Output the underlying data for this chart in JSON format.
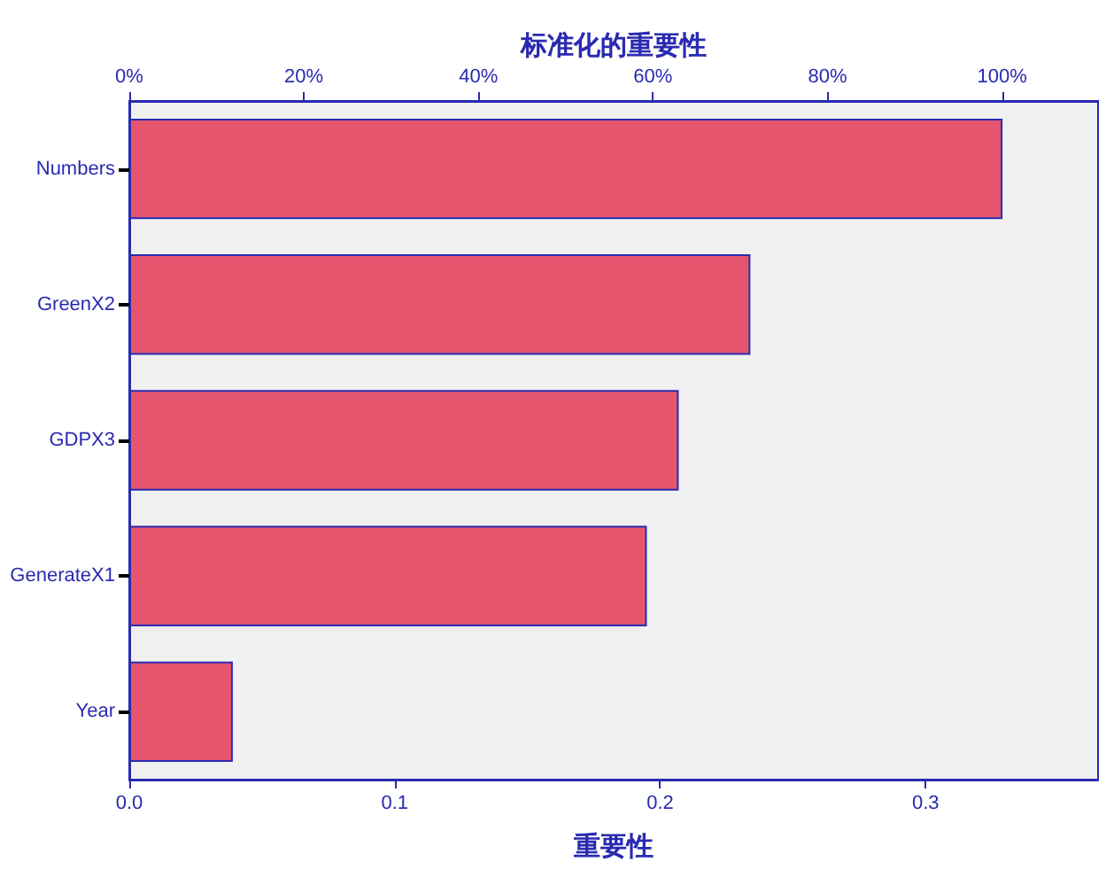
{
  "chart_data": {
    "type": "bar",
    "orientation": "horizontal",
    "xlabel": "重要性",
    "x2label": "标准化的重要性",
    "categories": [
      "Numbers",
      "GreenX2",
      "GDPX3",
      "GenerateX1",
      "Year"
    ],
    "values": [
      0.329,
      0.234,
      0.207,
      0.195,
      0.039
    ],
    "color": "#e5566e",
    "xlim": [
      0,
      0.365
    ],
    "xticks": [
      {
        "value": 0,
        "label": "0.0"
      },
      0.1,
      0.2,
      0.3
    ],
    "x2lim": [
      0,
      111
    ],
    "x2ticks": [
      {
        "value": 0,
        "label": "0%"
      },
      {
        "value": 20,
        "label": "20%"
      },
      {
        "value": 40,
        "label": "40%"
      },
      {
        "value": 60,
        "label": "60%"
      },
      {
        "value": 80,
        "label": "80%"
      },
      {
        "value": 100,
        "label": "100%"
      }
    ],
    "grid": false
  }
}
